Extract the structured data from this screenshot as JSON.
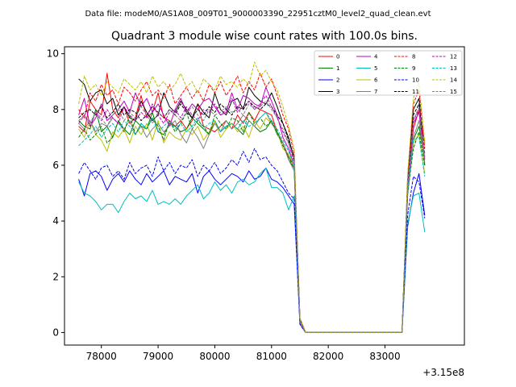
{
  "chart_data": {
    "type": "line",
    "suptitle": "Data file: modeM0/AS1A08_009T01_9000003390_22951cztM0_level2_quad_clean.evt",
    "title": "Quadrant 3 module wise count rates with 100.0s bins.",
    "xlabel": "",
    "ylabel": "",
    "x_offset_label": "+3.15e8",
    "xlim": [
      77350,
      84400
    ],
    "ylim": [
      -0.45,
      10.25
    ],
    "xticks": [
      78000,
      79000,
      80000,
      81000,
      82000,
      83000
    ],
    "xtick_labels": [
      "78000",
      "79000",
      "80000",
      "81000",
      "82000",
      "83000"
    ],
    "yticks": [
      0,
      2,
      4,
      6,
      8,
      10
    ],
    "ytick_labels": [
      "0",
      "2",
      "4",
      "6",
      "8",
      "10"
    ],
    "legend_position": "top-right",
    "x": [
      77600,
      77700,
      77800,
      77900,
      78000,
      78100,
      78200,
      78300,
      78400,
      78500,
      78600,
      78700,
      78800,
      78900,
      79000,
      79100,
      79200,
      79300,
      79400,
      79500,
      79600,
      79700,
      79800,
      79900,
      80000,
      80100,
      80200,
      80300,
      80400,
      80500,
      80600,
      80700,
      80800,
      80900,
      81000,
      81100,
      81200,
      81300,
      81400,
      81500,
      81600,
      81700,
      81800,
      81900,
      82000,
      82100,
      82200,
      82300,
      82400,
      82500,
      82600,
      82700,
      82800,
      82900,
      83000,
      83100,
      83200,
      83300,
      83400,
      83500,
      83600,
      83700
    ],
    "series": [
      {
        "name": "0",
        "color": "#ff0000",
        "dash": false,
        "values": [
          7.4,
          7.2,
          8.3,
          8.0,
          7.8,
          9.3,
          8.0,
          7.7,
          8.1,
          7.5,
          7.7,
          8.5,
          7.7,
          7.9,
          8.6,
          7.7,
          7.6,
          7.4,
          7.6,
          7.3,
          7.6,
          8.2,
          7.4,
          7.3,
          7.2,
          7.4,
          7.6,
          7.3,
          7.8,
          7.5,
          7.9,
          7.6,
          8.0,
          7.9,
          7.8,
          7.2,
          6.8,
          6.3,
          6.0,
          0.5,
          0.0,
          0.0,
          0.0,
          0.0,
          0.0,
          0.0,
          0.0,
          0.0,
          0.0,
          0.0,
          0.0,
          0.0,
          0.0,
          0.0,
          0.0,
          0.0,
          0.0,
          0.0,
          5.2,
          7.3,
          8.0,
          6.8
        ]
      },
      {
        "name": "1",
        "color": "#008000",
        "dash": false,
        "values": [
          7.6,
          7.4,
          7.3,
          8.0,
          7.2,
          7.4,
          7.0,
          7.6,
          7.3,
          7.1,
          7.6,
          7.4,
          7.3,
          7.9,
          7.2,
          7.1,
          7.5,
          7.4,
          7.2,
          7.3,
          7.7,
          7.5,
          7.3,
          7.1,
          7.6,
          7.2,
          7.4,
          7.5,
          7.3,
          7.1,
          7.6,
          7.4,
          7.2,
          7.3,
          7.6,
          7.1,
          6.8,
          6.2,
          5.9,
          0.4,
          0.0,
          0.0,
          0.0,
          0.0,
          0.0,
          0.0,
          0.0,
          0.0,
          0.0,
          0.0,
          0.0,
          0.0,
          0.0,
          0.0,
          0.0,
          0.0,
          0.0,
          0.0,
          5.0,
          6.9,
          7.4,
          6.2
        ]
      },
      {
        "name": "2",
        "color": "#0000ff",
        "dash": false,
        "values": [
          5.5,
          4.9,
          5.7,
          5.8,
          5.6,
          5.1,
          5.5,
          5.7,
          5.4,
          5.8,
          5.5,
          5.3,
          5.7,
          5.4,
          5.6,
          5.8,
          5.3,
          5.6,
          5.5,
          5.4,
          5.7,
          5.0,
          5.6,
          5.8,
          5.5,
          5.3,
          5.5,
          5.7,
          5.6,
          5.4,
          5.8,
          5.5,
          5.6,
          5.9,
          5.5,
          5.4,
          5.2,
          4.9,
          4.6,
          0.3,
          0.0,
          0.0,
          0.0,
          0.0,
          0.0,
          0.0,
          0.0,
          0.0,
          0.0,
          0.0,
          0.0,
          0.0,
          0.0,
          0.0,
          0.0,
          0.0,
          0.0,
          0.0,
          3.8,
          5.0,
          5.7,
          4.2
        ]
      },
      {
        "name": "3",
        "color": "#000000",
        "dash": false,
        "values": [
          9.1,
          8.9,
          8.3,
          8.6,
          8.7,
          8.2,
          8.4,
          7.8,
          8.1,
          7.7,
          7.6,
          8.3,
          7.9,
          7.6,
          7.8,
          8.6,
          8.1,
          7.9,
          8.3,
          8.0,
          7.7,
          8.2,
          7.9,
          7.7,
          8.6,
          8.0,
          7.8,
          8.3,
          8.4,
          8.0,
          8.8,
          8.5,
          8.3,
          8.2,
          8.6,
          8.1,
          7.5,
          7.0,
          6.2,
          0.5,
          0.0,
          0.0,
          0.0,
          0.0,
          0.0,
          0.0,
          0.0,
          0.0,
          0.0,
          0.0,
          0.0,
          0.0,
          0.0,
          0.0,
          0.0,
          0.0,
          0.0,
          0.0,
          5.5,
          8.0,
          8.4,
          6.0
        ]
      },
      {
        "name": "4",
        "color": "#bf00bf",
        "dash": false,
        "values": [
          7.8,
          8.4,
          7.4,
          7.7,
          8.2,
          7.6,
          7.8,
          8.0,
          8.3,
          7.9,
          8.6,
          8.1,
          8.4,
          7.9,
          8.2,
          7.8,
          7.4,
          8.0,
          8.4,
          7.9,
          8.2,
          8.0,
          8.3,
          8.4,
          8.1,
          7.8,
          7.9,
          8.6,
          8.0,
          8.5,
          8.4,
          8.2,
          8.1,
          8.8,
          8.3,
          7.8,
          7.0,
          6.6,
          6.0,
          0.4,
          0.0,
          0.0,
          0.0,
          0.0,
          0.0,
          0.0,
          0.0,
          0.0,
          0.0,
          0.0,
          0.0,
          0.0,
          0.0,
          0.0,
          0.0,
          0.0,
          0.0,
          0.0,
          5.0,
          7.5,
          7.9,
          6.2
        ]
      },
      {
        "name": "5",
        "color": "#00bfbf",
        "dash": false,
        "values": [
          5.4,
          5.0,
          4.9,
          4.7,
          4.4,
          4.6,
          4.6,
          4.3,
          4.7,
          5.0,
          4.8,
          4.9,
          4.7,
          5.1,
          4.6,
          4.7,
          4.6,
          4.8,
          4.6,
          4.9,
          5.1,
          5.3,
          4.8,
          5.0,
          5.4,
          5.1,
          5.3,
          5.0,
          5.4,
          5.5,
          5.3,
          5.4,
          5.7,
          5.9,
          5.2,
          5.2,
          5.0,
          4.4,
          4.9,
          0.3,
          0.0,
          0.0,
          0.0,
          0.0,
          0.0,
          0.0,
          0.0,
          0.0,
          0.0,
          0.0,
          0.0,
          0.0,
          0.0,
          0.0,
          0.0,
          0.0,
          0.0,
          0.0,
          3.9,
          4.9,
          5.0,
          3.6
        ]
      },
      {
        "name": "6",
        "color": "#bfbf00",
        "dash": false,
        "values": [
          7.3,
          7.0,
          7.6,
          7.1,
          6.9,
          6.5,
          7.2,
          7.0,
          7.3,
          6.8,
          7.4,
          7.1,
          7.5,
          6.9,
          7.6,
          6.8,
          7.2,
          7.0,
          6.9,
          7.3,
          7.1,
          7.4,
          6.9,
          7.2,
          7.6,
          7.0,
          7.3,
          7.5,
          7.2,
          7.4,
          7.0,
          7.6,
          7.3,
          7.7,
          7.5,
          7.2,
          6.6,
          6.4,
          6.0,
          0.4,
          0.0,
          0.0,
          0.0,
          0.0,
          0.0,
          0.0,
          0.0,
          0.0,
          0.0,
          0.0,
          0.0,
          0.0,
          0.0,
          0.0,
          0.0,
          0.0,
          0.0,
          0.0,
          5.0,
          6.8,
          7.1,
          5.7
        ]
      },
      {
        "name": "7",
        "color": "#808080",
        "dash": false,
        "values": [
          7.5,
          7.3,
          7.6,
          7.2,
          7.5,
          7.4,
          7.7,
          7.5,
          7.3,
          7.6,
          7.1,
          7.4,
          7.0,
          7.3,
          7.5,
          7.2,
          7.4,
          7.6,
          7.1,
          6.8,
          7.3,
          7.0,
          6.6,
          7.1,
          7.5,
          7.2,
          7.6,
          7.3,
          7.5,
          7.8,
          7.6,
          7.4,
          7.7,
          7.9,
          7.5,
          7.2,
          6.8,
          6.2,
          5.8,
          0.3,
          0.0,
          0.0,
          0.0,
          0.0,
          0.0,
          0.0,
          0.0,
          0.0,
          0.0,
          0.0,
          0.0,
          0.0,
          0.0,
          0.0,
          0.0,
          0.0,
          0.0,
          0.0,
          4.9,
          7.0,
          7.6,
          6.1
        ]
      },
      {
        "name": "8",
        "color": "#ff0000",
        "dash": true,
        "values": [
          8.0,
          7.7,
          8.6,
          8.3,
          8.9,
          8.5,
          8.7,
          8.2,
          8.8,
          8.6,
          8.3,
          8.7,
          9.0,
          8.5,
          8.7,
          8.4,
          8.9,
          8.2,
          8.5,
          8.8,
          8.4,
          8.7,
          8.3,
          8.9,
          8.6,
          9.0,
          8.5,
          8.8,
          9.2,
          8.6,
          9.0,
          8.7,
          9.3,
          8.8,
          9.1,
          8.5,
          7.8,
          7.3,
          6.4,
          0.5,
          0.0,
          0.0,
          0.0,
          0.0,
          0.0,
          0.0,
          0.0,
          0.0,
          0.0,
          0.0,
          0.0,
          0.0,
          0.0,
          0.0,
          0.0,
          0.0,
          0.0,
          0.0,
          5.5,
          8.2,
          8.7,
          6.6
        ]
      },
      {
        "name": "9",
        "color": "#008000",
        "dash": true,
        "values": [
          7.0,
          7.3,
          6.9,
          7.1,
          7.4,
          6.8,
          7.0,
          7.6,
          7.2,
          7.8,
          7.1,
          7.5,
          7.3,
          7.7,
          7.4,
          6.9,
          7.6,
          7.2,
          7.5,
          7.9,
          7.3,
          7.6,
          7.4,
          7.1,
          7.8,
          7.5,
          7.3,
          7.7,
          7.6,
          7.2,
          7.9,
          7.5,
          7.7,
          7.4,
          7.6,
          7.2,
          6.7,
          6.3,
          5.9,
          0.4,
          0.0,
          0.0,
          0.0,
          0.0,
          0.0,
          0.0,
          0.0,
          0.0,
          0.0,
          0.0,
          0.0,
          0.0,
          0.0,
          0.0,
          0.0,
          0.0,
          0.0,
          0.0,
          5.0,
          6.6,
          7.2,
          6.0
        ]
      },
      {
        "name": "10",
        "color": "#0000ff",
        "dash": true,
        "values": [
          5.7,
          6.1,
          5.8,
          5.5,
          5.9,
          6.0,
          5.6,
          5.8,
          5.5,
          6.1,
          5.7,
          5.9,
          6.0,
          5.6,
          6.3,
          5.8,
          6.1,
          5.7,
          6.0,
          5.9,
          6.2,
          5.6,
          6.0,
          5.8,
          6.1,
          5.7,
          5.9,
          6.2,
          6.0,
          6.5,
          6.1,
          6.6,
          6.2,
          6.3,
          6.0,
          5.8,
          5.4,
          5.0,
          4.8,
          0.3,
          0.0,
          0.0,
          0.0,
          0.0,
          0.0,
          0.0,
          0.0,
          0.0,
          0.0,
          0.0,
          0.0,
          0.0,
          0.0,
          0.0,
          0.0,
          0.0,
          0.0,
          0.0,
          4.2,
          5.6,
          5.4,
          4.1
        ]
      },
      {
        "name": "11",
        "color": "#000000",
        "dash": true,
        "values": [
          7.7,
          7.9,
          8.0,
          7.8,
          8.1,
          7.7,
          7.9,
          8.2,
          7.8,
          8.0,
          7.9,
          7.6,
          7.8,
          8.1,
          7.9,
          7.7,
          8.0,
          7.8,
          8.2,
          7.9,
          7.7,
          8.0,
          7.8,
          8.1,
          7.9,
          8.2,
          8.0,
          7.8,
          8.1,
          8.0,
          8.3,
          8.1,
          8.0,
          8.2,
          8.1,
          7.8,
          7.5,
          6.9,
          6.3,
          0.4,
          0.0,
          0.0,
          0.0,
          0.0,
          0.0,
          0.0,
          0.0,
          0.0,
          0.0,
          0.0,
          0.0,
          0.0,
          0.0,
          0.0,
          0.0,
          0.0,
          0.0,
          0.0,
          5.4,
          7.8,
          8.2,
          6.4
        ]
      },
      {
        "name": "12",
        "color": "#bf00bf",
        "dash": true,
        "values": [
          7.5,
          7.8,
          7.4,
          7.9,
          7.6,
          8.0,
          7.7,
          7.5,
          8.1,
          7.8,
          7.6,
          7.9,
          7.7,
          8.2,
          7.8,
          7.5,
          7.9,
          8.0,
          7.7,
          8.1,
          7.8,
          7.6,
          8.0,
          7.9,
          8.2,
          7.8,
          8.0,
          8.4,
          7.9,
          8.1,
          8.3,
          8.0,
          8.2,
          8.5,
          8.1,
          7.7,
          7.2,
          6.8,
          6.1,
          0.4,
          0.0,
          0.0,
          0.0,
          0.0,
          0.0,
          0.0,
          0.0,
          0.0,
          0.0,
          0.0,
          0.0,
          0.0,
          0.0,
          0.0,
          0.0,
          0.0,
          0.0,
          0.0,
          5.2,
          7.6,
          8.0,
          6.3
        ]
      },
      {
        "name": "13",
        "color": "#00bfbf",
        "dash": true,
        "values": [
          6.7,
          6.9,
          7.1,
          7.4,
          7.0,
          7.3,
          7.5,
          7.2,
          7.6,
          7.4,
          7.1,
          7.5,
          7.3,
          7.7,
          7.2,
          7.4,
          7.6,
          7.3,
          7.5,
          7.2,
          7.4,
          7.7,
          7.3,
          7.5,
          7.6,
          7.2,
          7.4,
          7.5,
          7.3,
          7.6,
          7.4,
          7.5,
          7.7,
          7.9,
          7.6,
          7.3,
          6.9,
          6.5,
          6.0,
          0.4,
          0.0,
          0.0,
          0.0,
          0.0,
          0.0,
          0.0,
          0.0,
          0.0,
          0.0,
          0.0,
          0.0,
          0.0,
          0.0,
          0.0,
          0.0,
          0.0,
          0.0,
          0.0,
          5.1,
          6.9,
          7.0,
          5.6
        ]
      },
      {
        "name": "14",
        "color": "#bfbf00",
        "dash": true,
        "values": [
          8.2,
          9.2,
          8.7,
          8.9,
          8.5,
          9.0,
          8.8,
          8.6,
          9.1,
          8.9,
          8.7,
          9.0,
          8.6,
          9.2,
          8.8,
          9.0,
          8.7,
          8.9,
          9.3,
          8.8,
          9.0,
          8.6,
          9.1,
          8.9,
          8.7,
          9.2,
          8.9,
          9.0,
          8.8,
          9.1,
          8.9,
          9.7,
          9.2,
          9.4,
          9.0,
          8.7,
          8.1,
          7.4,
          6.6,
          0.5,
          0.0,
          0.0,
          0.0,
          0.0,
          0.0,
          0.0,
          0.0,
          0.0,
          0.0,
          0.0,
          0.0,
          0.0,
          0.0,
          0.0,
          0.0,
          0.0,
          0.0,
          0.0,
          5.7,
          8.4,
          9.0,
          6.8
        ]
      },
      {
        "name": "15",
        "color": "#808080",
        "dash": true,
        "values": [
          7.6,
          7.8,
          7.5,
          7.9,
          7.7,
          7.4,
          7.8,
          8.0,
          7.6,
          7.9,
          7.7,
          8.1,
          7.8,
          7.5,
          7.9,
          7.7,
          8.0,
          7.8,
          7.6,
          7.9,
          8.1,
          7.8,
          7.6,
          8.0,
          7.8,
          7.9,
          8.1,
          7.9,
          8.0,
          7.8,
          8.2,
          8.0,
          8.1,
          8.3,
          8.0,
          7.7,
          7.3,
          6.8,
          6.2,
          0.4,
          0.0,
          0.0,
          0.0,
          0.0,
          0.0,
          0.0,
          0.0,
          0.0,
          0.0,
          0.0,
          0.0,
          0.0,
          0.0,
          0.0,
          0.0,
          0.0,
          0.0,
          0.0,
          5.3,
          7.6,
          8.1,
          6.3
        ]
      }
    ]
  }
}
